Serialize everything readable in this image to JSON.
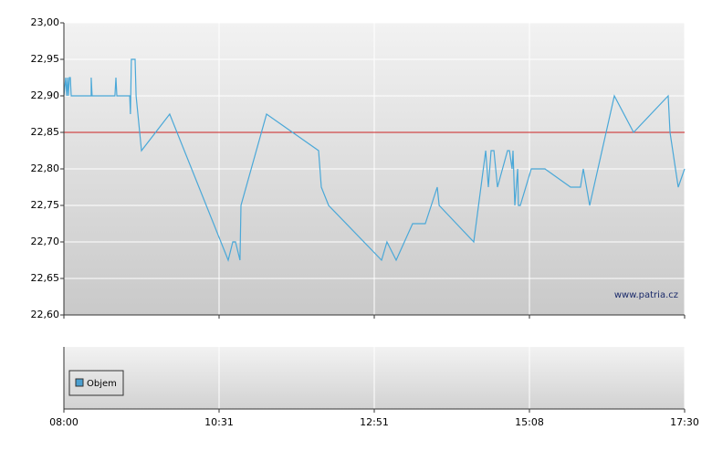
{
  "chart_data": {
    "type": "line",
    "color": "#4aa8d8",
    "x": [
      0,
      0.012,
      0.018,
      0.024,
      0.029,
      0.035,
      0.041,
      0.047,
      0.176,
      0.176,
      0.182,
      0.329,
      0.335,
      0.341,
      0.424,
      0.429,
      0.435,
      0.459,
      0.465,
      0.5,
      0.682,
      1.059,
      1.088,
      1.106,
      1.135,
      1.141,
      1.306,
      1.641,
      1.659,
      1.706,
      2.047,
      2.082,
      2.141,
      2.247,
      2.329,
      2.406,
      2.418,
      2.641,
      2.718,
      2.735,
      2.753,
      2.771,
      2.794,
      2.859,
      2.871,
      2.888,
      2.894,
      2.906,
      2.924,
      2.929,
      2.941,
      3.012,
      3.1,
      3.265,
      3.329,
      3.347,
      3.388,
      3.547,
      3.671,
      3.894,
      3.906,
      3.959,
      4
    ],
    "values": [
      22.9,
      22.925,
      22.9,
      22.925,
      22.9,
      22.925,
      22.925,
      22.9,
      22.9,
      22.925,
      22.9,
      22.9,
      22.925,
      22.9,
      22.9,
      22.875,
      22.95,
      22.95,
      22.9,
      22.825,
      22.875,
      22.675,
      22.7,
      22.7,
      22.675,
      22.75,
      22.875,
      22.825,
      22.775,
      22.75,
      22.675,
      22.7,
      22.675,
      22.725,
      22.725,
      22.775,
      22.75,
      22.7,
      22.825,
      22.775,
      22.825,
      22.825,
      22.775,
      22.825,
      22.825,
      22.8,
      22.825,
      22.75,
      22.8,
      22.75,
      22.75,
      22.8,
      22.8,
      22.775,
      22.775,
      22.8,
      22.75,
      22.9,
      22.85,
      22.9,
      22.85,
      22.775,
      22.8
    ],
    "reference_line": {
      "value": 22.85,
      "color": "#cc2222"
    },
    "ylim": [
      22.6,
      23.0
    ],
    "yticks": [
      {
        "value": 22.6,
        "label": "22,60"
      },
      {
        "value": 22.65,
        "label": "22,65"
      },
      {
        "value": 22.7,
        "label": "22,70"
      },
      {
        "value": 22.75,
        "label": "22,75"
      },
      {
        "value": 22.8,
        "label": "22,80"
      },
      {
        "value": 22.85,
        "label": "22,85"
      },
      {
        "value": 22.9,
        "label": "22,90"
      },
      {
        "value": 22.95,
        "label": "22,95"
      },
      {
        "value": 23.0,
        "label": "23,00"
      }
    ],
    "xlim": [
      0,
      4
    ],
    "xticks": [
      {
        "value": 0,
        "label": "08:00"
      },
      {
        "value": 1,
        "label": "10:31"
      },
      {
        "value": 2,
        "label": "12:51"
      },
      {
        "value": 3,
        "label": "15:08"
      },
      {
        "value": 4,
        "label": "17:30"
      }
    ],
    "grid": true,
    "watermark": "www.patria.cz",
    "volume_legend": {
      "name": "Objem",
      "color": "#4a9fd0"
    }
  }
}
